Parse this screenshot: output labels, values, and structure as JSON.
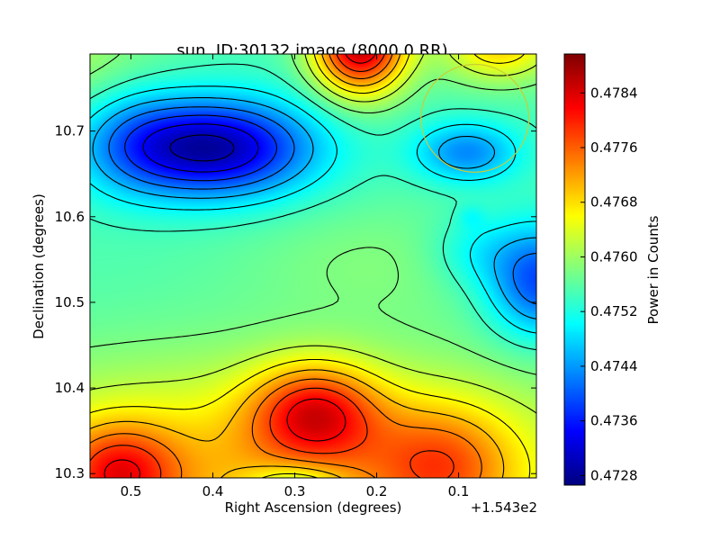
{
  "chart_data": {
    "type": "heatmap",
    "title": "sun, ID:30132 image (8000.0,RR)",
    "xlabel": "Right Ascension (degrees)",
    "ylabel": "Declination (degrees)",
    "x_offset_label": "+1.543e2",
    "colorbar_label": "Power in Counts",
    "xlim": [
      0.55,
      0.005
    ],
    "ylim": [
      10.295,
      10.79
    ],
    "x_ticks": [
      {
        "value": 0.5,
        "label": "0.5"
      },
      {
        "value": 0.4,
        "label": "0.4"
      },
      {
        "value": 0.3,
        "label": "0.3"
      },
      {
        "value": 0.2,
        "label": "0.2"
      },
      {
        "value": 0.1,
        "label": "0.1"
      }
    ],
    "y_ticks": [
      {
        "value": 10.3,
        "label": "10.3"
      },
      {
        "value": 10.4,
        "label": "10.4"
      },
      {
        "value": 10.5,
        "label": "10.5"
      },
      {
        "value": 10.6,
        "label": "10.6"
      },
      {
        "value": 10.7,
        "label": "10.7"
      }
    ],
    "color_range": [
      0.47266,
      0.47897
    ],
    "colorbar_ticks": [
      {
        "value": 0.4728,
        "label": "0.4728"
      },
      {
        "value": 0.4736,
        "label": "0.4736"
      },
      {
        "value": 0.4744,
        "label": "0.4744"
      },
      {
        "value": 0.4752,
        "label": "0.4752"
      },
      {
        "value": 0.476,
        "label": "0.4760"
      },
      {
        "value": 0.4768,
        "label": "0.4768"
      },
      {
        "value": 0.4776,
        "label": "0.4776"
      },
      {
        "value": 0.4784,
        "label": "0.4784"
      }
    ],
    "colormap": "jet",
    "contours": true,
    "grid": false,
    "features": [
      {
        "kind": "minimum",
        "x": 0.4,
        "y": 10.68,
        "value": 0.4731
      },
      {
        "kind": "minimum",
        "x": 0.1,
        "y": 10.675,
        "value": 0.4742
      },
      {
        "kind": "minimum",
        "x": 0.0,
        "y": 10.525,
        "value": 0.4738
      },
      {
        "kind": "maximum",
        "x": 0.22,
        "y": 10.79,
        "value": 0.4784
      },
      {
        "kind": "maximum",
        "x": 0.275,
        "y": 10.372,
        "value": 0.4788
      },
      {
        "kind": "maximum",
        "x": 0.515,
        "y": 10.3,
        "value": 0.4787
      },
      {
        "kind": "maximum",
        "x": 0.12,
        "y": 10.31,
        "value": 0.4781
      },
      {
        "kind": "maximum",
        "x": 0.3,
        "y": 10.295,
        "value": 0.4769
      }
    ],
    "annotation_circle": {
      "x": 0.08,
      "y": 10.715,
      "radius": 0.063,
      "color": "#cccc33"
    }
  }
}
